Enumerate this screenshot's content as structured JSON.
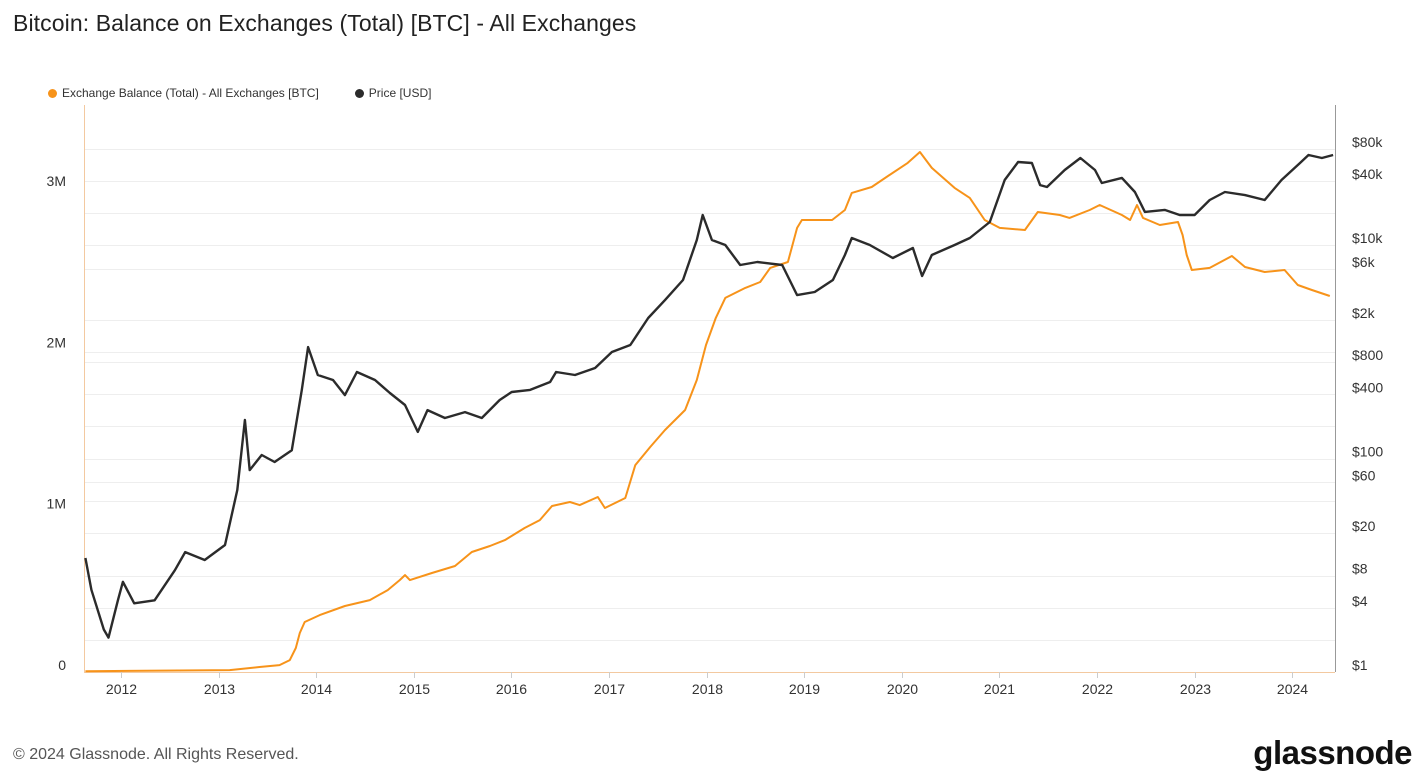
{
  "title": "Bitcoin: Balance on Exchanges (Total) [BTC] - All Exchanges",
  "footer": "© 2024 Glassnode. All Rights Reserved.",
  "logo": "glassnode",
  "colors": {
    "balance": "#f7931a",
    "price": "#2b2b2b",
    "grid": "#eeeeee"
  },
  "chart_data": {
    "type": "line",
    "title": "Bitcoin: Balance on Exchanges (Total) [BTC] - All Exchanges",
    "legend_position": "top-left",
    "grid": true,
    "x_axis": {
      "type": "date",
      "ticks": [
        "2012",
        "2013",
        "2014",
        "2015",
        "2016",
        "2017",
        "2018",
        "2019",
        "2020",
        "2021",
        "2022",
        "2023",
        "2024"
      ],
      "range": [
        "2011-08",
        "2024-06"
      ]
    },
    "y_left": {
      "scale": "linear",
      "ticks": [
        {
          "v": 0,
          "label": "0"
        },
        {
          "v": 1000000,
          "label": "1M"
        },
        {
          "v": 2000000,
          "label": "2M"
        },
        {
          "v": 3000000,
          "label": "3M"
        }
      ],
      "range": [
        0,
        3500000
      ]
    },
    "y_right": {
      "scale": "log",
      "ticks": [
        {
          "v": 1,
          "label": "$1"
        },
        {
          "v": 4,
          "label": "$4"
        },
        {
          "v": 8,
          "label": "$8"
        },
        {
          "v": 20,
          "label": "$20"
        },
        {
          "v": 60,
          "label": "$60"
        },
        {
          "v": 100,
          "label": "$100"
        },
        {
          "v": 400,
          "label": "$400"
        },
        {
          "v": 800,
          "label": "$800"
        },
        {
          "v": 2000,
          "label": "$2k"
        },
        {
          "v": 6000,
          "label": "$6k"
        },
        {
          "v": 10000,
          "label": "$10k"
        },
        {
          "v": 40000,
          "label": "$40k"
        },
        {
          "v": 80000,
          "label": "$80k"
        }
      ],
      "range": [
        1,
        200000
      ]
    },
    "series": [
      {
        "name": "Exchange Balance (Total) - All Exchanges [BTC]",
        "axis": "left",
        "color": "#f7931a",
        "points": [
          [
            "2011-08-20",
            5000
          ],
          [
            "2013-02-12",
            12000
          ],
          [
            "2013-06-02",
            31000
          ],
          [
            "2013-08-16",
            43000
          ],
          [
            "2013-09-24",
            74000
          ],
          [
            "2013-10-16",
            149000
          ],
          [
            "2013-10-31",
            242000
          ],
          [
            "2013-11-19",
            310000
          ],
          [
            "2014-01-14",
            353000
          ],
          [
            "2014-04-17",
            409000
          ],
          [
            "2014-07-19",
            446000
          ],
          [
            "2014-09-25",
            508000
          ],
          [
            "2014-11-09",
            570000
          ],
          [
            "2014-11-29",
            601000
          ],
          [
            "2014-12-17",
            570000
          ],
          [
            "2015-03-08",
            614000
          ],
          [
            "2015-06-03",
            657000
          ],
          [
            "2015-08-05",
            744000
          ],
          [
            "2015-10-12",
            781000
          ],
          [
            "2015-12-07",
            818000
          ],
          [
            "2016-02-20",
            893000
          ],
          [
            "2016-04-16",
            942000
          ],
          [
            "2016-05-31",
            1029000
          ],
          [
            "2016-08-07",
            1054000
          ],
          [
            "2016-09-13",
            1035000
          ],
          [
            "2016-11-20",
            1085000
          ],
          [
            "2016-12-16",
            1017000
          ],
          [
            "2017-03-01",
            1079000
          ],
          [
            "2017-04-08",
            1283000
          ],
          [
            "2017-06-03",
            1395000
          ],
          [
            "2017-07-28",
            1500000
          ],
          [
            "2017-10-12",
            1624000
          ],
          [
            "2017-11-25",
            1810000
          ],
          [
            "2017-12-29",
            2027000
          ],
          [
            "2018-02-05",
            2195000
          ],
          [
            "2018-03-10",
            2319000
          ],
          [
            "2018-05-24",
            2381000
          ],
          [
            "2018-07-19",
            2418000
          ],
          [
            "2018-08-26",
            2505000
          ],
          [
            "2018-11-01",
            2542000
          ],
          [
            "2018-12-05",
            2753000
          ],
          [
            "2018-12-23",
            2802000
          ],
          [
            "2019-04-14",
            2802000
          ],
          [
            "2019-06-01",
            2864000
          ],
          [
            "2019-06-27",
            2970000
          ],
          [
            "2019-09-10",
            3007000
          ],
          [
            "2019-11-16",
            3081000
          ],
          [
            "2020-01-23",
            3156000
          ],
          [
            "2020-03-08",
            3224000
          ],
          [
            "2020-04-22",
            3125000
          ],
          [
            "2020-07-16",
            3001000
          ],
          [
            "2020-09-12",
            2939000
          ],
          [
            "2020-11-07",
            2802000
          ],
          [
            "2021-01-02",
            2753000
          ],
          [
            "2021-04-05",
            2740000
          ],
          [
            "2021-05-23",
            2852000
          ],
          [
            "2021-08-14",
            2833000
          ],
          [
            "2021-09-20",
            2815000
          ],
          [
            "2021-12-04",
            2864000
          ],
          [
            "2022-01-11",
            2895000
          ],
          [
            "2022-04-03",
            2833000
          ],
          [
            "2022-05-03",
            2802000
          ],
          [
            "2022-05-29",
            2895000
          ],
          [
            "2022-06-21",
            2815000
          ],
          [
            "2022-08-23",
            2771000
          ],
          [
            "2022-10-30",
            2790000
          ],
          [
            "2022-11-17",
            2709000
          ],
          [
            "2022-12-02",
            2585000
          ],
          [
            "2022-12-21",
            2492000
          ],
          [
            "2023-02-27",
            2505000
          ],
          [
            "2023-05-19",
            2579000
          ],
          [
            "2023-07-07",
            2511000
          ],
          [
            "2023-09-20",
            2480000
          ],
          [
            "2023-12-03",
            2492000
          ],
          [
            "2024-01-22",
            2399000
          ],
          [
            "2024-03-14",
            2368000
          ],
          [
            "2024-05-20",
            2331000
          ]
        ]
      },
      {
        "name": "Price [USD]",
        "axis": "right",
        "color": "#2b2b2b",
        "points": [
          [
            "2011-08-20",
            11.7
          ],
          [
            "2011-09-12",
            5.9
          ],
          [
            "2011-10-28",
            2.5
          ],
          [
            "2011-11-15",
            2.1
          ],
          [
            "2011-12-20",
            4.7
          ],
          [
            "2012-01-08",
            7.0
          ],
          [
            "2012-02-20",
            4.4
          ],
          [
            "2012-05-05",
            4.7
          ],
          [
            "2012-07-20",
            9.0
          ],
          [
            "2012-08-28",
            13.3
          ],
          [
            "2012-11-10",
            11.2
          ],
          [
            "2013-01-25",
            15.5
          ],
          [
            "2013-03-10",
            50.8
          ],
          [
            "2013-04-08",
            230
          ],
          [
            "2013-04-26",
            78
          ],
          [
            "2013-06-10",
            108
          ],
          [
            "2013-07-28",
            93
          ],
          [
            "2013-10-01",
            120
          ],
          [
            "2013-11-08",
            440
          ],
          [
            "2013-12-01",
            1110
          ],
          [
            "2014-01-07",
            607
          ],
          [
            "2014-03-03",
            545
          ],
          [
            "2014-04-17",
            394
          ],
          [
            "2014-06-01",
            648
          ],
          [
            "2014-08-08",
            545
          ],
          [
            "2014-10-03",
            412
          ],
          [
            "2014-11-29",
            318
          ],
          [
            "2015-01-16",
            178
          ],
          [
            "2015-02-22",
            285
          ],
          [
            "2015-04-26",
            240
          ],
          [
            "2015-07-10",
            273
          ],
          [
            "2015-09-12",
            240
          ],
          [
            "2015-11-18",
            354
          ],
          [
            "2016-01-02",
            421
          ],
          [
            "2016-03-10",
            440
          ],
          [
            "2016-05-24",
            522
          ],
          [
            "2016-06-16",
            648
          ],
          [
            "2016-08-26",
            607
          ],
          [
            "2016-11-10",
            706
          ],
          [
            "2017-01-12",
            998
          ],
          [
            "2017-03-20",
            1160
          ],
          [
            "2017-05-26",
            2080
          ],
          [
            "2017-07-28",
            3060
          ],
          [
            "2017-10-04",
            4720
          ],
          [
            "2017-11-25",
            11190
          ],
          [
            "2017-12-17",
            19200
          ],
          [
            "2018-01-21",
            11190
          ],
          [
            "2018-03-10",
            10040
          ],
          [
            "2018-05-05",
            6520
          ],
          [
            "2018-07-08",
            6960
          ],
          [
            "2018-10-10",
            6520
          ],
          [
            "2018-12-05",
            3410
          ],
          [
            "2019-02-10",
            3640
          ],
          [
            "2019-04-17",
            4720
          ],
          [
            "2019-06-01",
            8090
          ],
          [
            "2019-06-27",
            11680
          ],
          [
            "2019-09-03",
            10040
          ],
          [
            "2019-11-28",
            7590
          ],
          [
            "2020-02-12",
            9420
          ],
          [
            "2020-03-16",
            5140
          ],
          [
            "2020-04-22",
            8090
          ],
          [
            "2020-07-16",
            10040
          ],
          [
            "2020-09-12",
            11680
          ],
          [
            "2020-11-26",
            16500
          ],
          [
            "2021-01-21",
            40800
          ],
          [
            "2021-03-10",
            60200
          ],
          [
            "2021-05-01",
            58900
          ],
          [
            "2021-06-01",
            36600
          ],
          [
            "2021-06-27",
            35100
          ],
          [
            "2021-09-02",
            50700
          ],
          [
            "2021-10-30",
            65700
          ],
          [
            "2021-12-24",
            50700
          ],
          [
            "2022-01-19",
            38300
          ],
          [
            "2022-04-03",
            42700
          ],
          [
            "2022-05-21",
            31500
          ],
          [
            "2022-06-28",
            20500
          ],
          [
            "2022-09-11",
            21400
          ],
          [
            "2022-11-06",
            19200
          ],
          [
            "2023-01-01",
            19200
          ],
          [
            "2023-02-27",
            26500
          ],
          [
            "2023-04-23",
            31500
          ],
          [
            "2023-07-07",
            29500
          ],
          [
            "2023-09-20",
            26500
          ],
          [
            "2023-11-22",
            40800
          ],
          [
            "2024-01-30",
            58900
          ],
          [
            "2024-03-01",
            70000
          ],
          [
            "2024-04-21",
            65700
          ],
          [
            "2024-06-02",
            70000
          ]
        ]
      }
    ]
  }
}
